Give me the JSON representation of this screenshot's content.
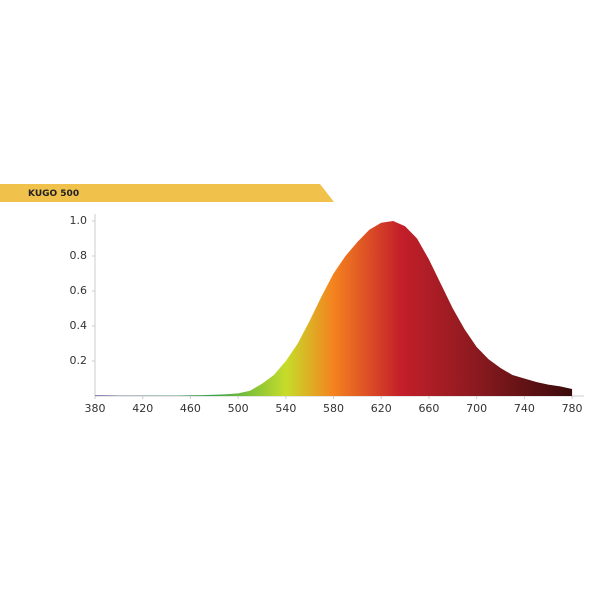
{
  "chart_data": {
    "type": "area",
    "title": "KUGO 500",
    "x": [
      380,
      390,
      400,
      410,
      420,
      430,
      440,
      450,
      460,
      470,
      480,
      490,
      500,
      510,
      520,
      530,
      540,
      550,
      560,
      570,
      580,
      590,
      600,
      610,
      620,
      630,
      640,
      650,
      660,
      670,
      680,
      690,
      700,
      710,
      720,
      730,
      740,
      750,
      760,
      770,
      780
    ],
    "values": [
      0.005,
      0.004,
      0.003,
      0.003,
      0.003,
      0.003,
      0.003,
      0.003,
      0.004,
      0.005,
      0.007,
      0.01,
      0.015,
      0.03,
      0.07,
      0.12,
      0.2,
      0.3,
      0.43,
      0.57,
      0.7,
      0.8,
      0.88,
      0.95,
      0.99,
      1.0,
      0.97,
      0.9,
      0.78,
      0.64,
      0.5,
      0.38,
      0.28,
      0.21,
      0.16,
      0.12,
      0.1,
      0.08,
      0.065,
      0.055,
      0.04
    ],
    "xlim": [
      380,
      790
    ],
    "xticks": [
      380,
      420,
      460,
      500,
      540,
      580,
      620,
      660,
      700,
      740,
      780
    ],
    "ylim": [
      0,
      1.0
    ],
    "yticks": [
      0.2,
      0.4,
      0.6,
      0.8,
      {
        "value": 1.0,
        "label": "1.0"
      }
    ]
  }
}
